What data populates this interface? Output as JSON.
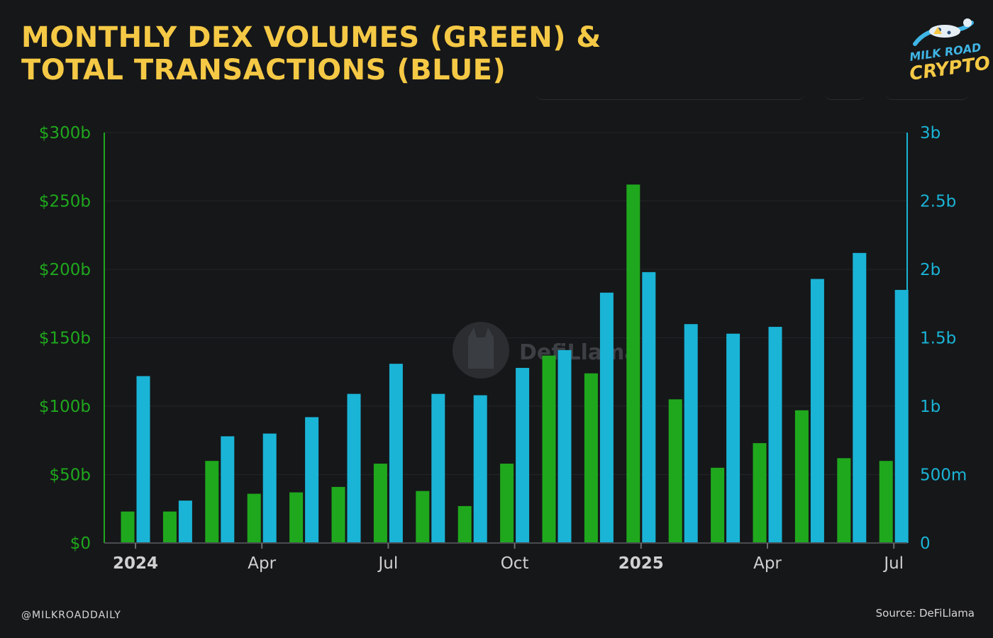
{
  "title": {
    "line1": "MONTHLY DEX VOLUMES (GREEN) &",
    "line2": "TOTAL TRANSACTIONS (BLUE)"
  },
  "logo": {
    "line1": "MILK ROAD",
    "line2": "CRYPTO"
  },
  "watermark": "DefiLlama",
  "footer": {
    "handle": "@MILKROADDAILY",
    "source": "Source: DeFiLlama"
  },
  "colors": {
    "background": "#161719",
    "title": "#f5c945",
    "volume": "#1fa81d",
    "transactions": "#1ab4d6"
  },
  "chart_data": {
    "type": "bar",
    "categories": [
      "Jan 2024",
      "Feb 2024",
      "Mar 2024",
      "Apr 2024",
      "May 2024",
      "Jun 2024",
      "Jul 2024",
      "Aug 2024",
      "Sep 2024",
      "Oct 2024",
      "Nov 2024",
      "Dec 2024",
      "Jan 2025",
      "Feb 2025",
      "Mar 2025",
      "Apr 2025",
      "May 2025",
      "Jun 2025",
      "Jul 2025"
    ],
    "series": [
      {
        "axis": "left",
        "color": "#1fa81d",
        "values": [
          23,
          23,
          60,
          36,
          37,
          41,
          58,
          38,
          27,
          58,
          137,
          124,
          262,
          105,
          55,
          73,
          97,
          62,
          60
        ]
      },
      {
        "axis": "right",
        "color": "#1ab4d6",
        "values": [
          1.22,
          0.31,
          0.78,
          0.8,
          0.92,
          1.09,
          1.31,
          1.09,
          1.08,
          1.28,
          1.41,
          1.83,
          1.98,
          1.6,
          1.53,
          1.58,
          1.93,
          2.12,
          1.85
        ]
      }
    ],
    "y_left": {
      "ylim": [
        0,
        300
      ],
      "ticks": [
        "$0",
        "$50b",
        "$100b",
        "$150b",
        "$200b",
        "$250b",
        "$300b"
      ]
    },
    "y_right": {
      "ylim": [
        0,
        3
      ],
      "ticks": [
        "0",
        "500m",
        "1b",
        "1.5b",
        "2b",
        "2.5b",
        "3b"
      ]
    },
    "x_ticks": [
      {
        "month_index": 0,
        "label": "2024",
        "bold": true
      },
      {
        "month_index": 3,
        "label": "Apr",
        "bold": false
      },
      {
        "month_index": 6,
        "label": "Jul",
        "bold": false
      },
      {
        "month_index": 9,
        "label": "Oct",
        "bold": false
      },
      {
        "month_index": 12,
        "label": "2025",
        "bold": true
      },
      {
        "month_index": 15,
        "label": "Apr",
        "bold": false
      },
      {
        "month_index": 18,
        "label": "Jul",
        "bold": false
      }
    ],
    "grid": true
  }
}
